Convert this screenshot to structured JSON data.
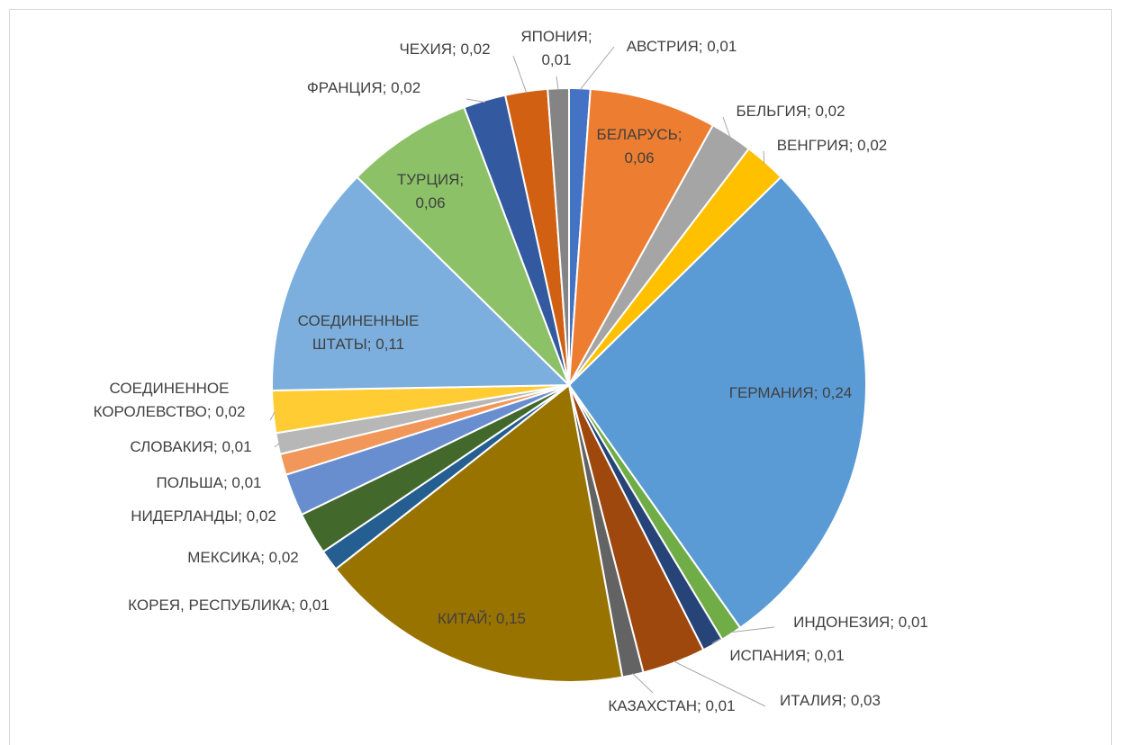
{
  "chart_data": {
    "type": "pie",
    "label_separator": "; ",
    "categories": [
      "АВСТРИЯ",
      "БЕЛАРУСЬ",
      "БЕЛЬГИЯ",
      "ВЕНГРИЯ",
      "ГЕРМАНИЯ",
      "ИНДОНЕЗИЯ",
      "ИСПАНИЯ",
      "ИТАЛИЯ",
      "КАЗАХСТАН",
      "КИТАЙ",
      "КОРЕЯ, РЕСПУБЛИКА",
      "МЕКСИКА",
      "НИДЕРЛАНДЫ",
      "ПОЛЬША",
      "СЛОВАКИЯ",
      "СОЕДИНЕННОЕ КОРОЛЕВСТВО",
      "СОЕДИНЕННЫЕ ШТАТЫ",
      "ТУРЦИЯ",
      "ФРАНЦИЯ",
      "ЧЕХИЯ",
      "ЯПОНИЯ"
    ],
    "values": [
      0.01,
      0.06,
      0.02,
      0.02,
      0.24,
      0.01,
      0.01,
      0.03,
      0.01,
      0.15,
      0.01,
      0.02,
      0.02,
      0.01,
      0.01,
      0.02,
      0.11,
      0.06,
      0.02,
      0.02,
      0.01
    ],
    "value_labels": [
      "0,01",
      "0,06",
      "0,02",
      "0,02",
      "0,24",
      "0,01",
      "0,01",
      "0,03",
      "0,01",
      "0,15",
      "0,01",
      "0,02",
      "0,02",
      "0,01",
      "0,01",
      "0,02",
      "0,11",
      "0,06",
      "0,02",
      "0,02",
      "0,01"
    ],
    "colors": [
      "#4472c4",
      "#ed7d31",
      "#a5a5a5",
      "#ffc000",
      "#5b9bd5",
      "#70ad47",
      "#264478",
      "#9e480e",
      "#636363",
      "#997300",
      "#255e91",
      "#43682b",
      "#698ed0",
      "#f1975a",
      "#b7b7b7",
      "#ffcd33",
      "#7cafdd",
      "#8cc168",
      "#335aa1",
      "#d26012",
      "#848484"
    ]
  }
}
